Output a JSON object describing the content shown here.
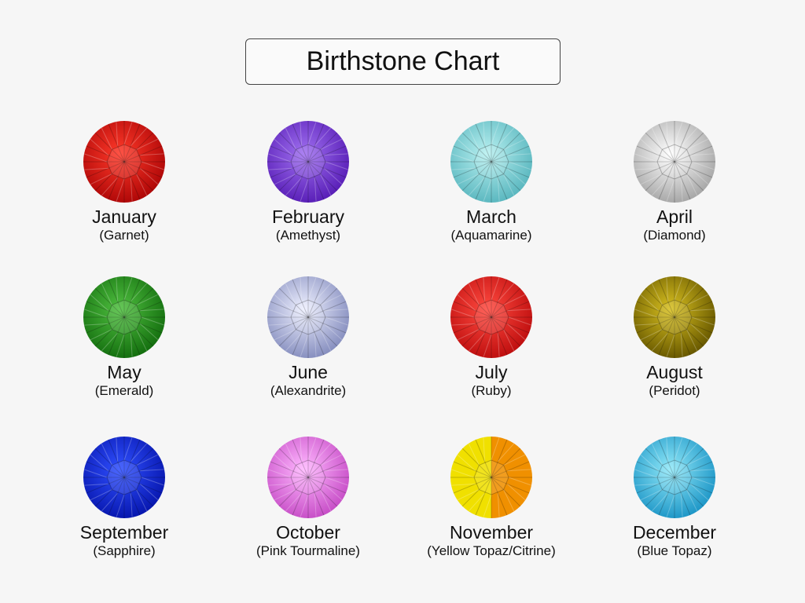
{
  "title": "Birthstone Chart",
  "stones": [
    {
      "month": "January",
      "stone": "(Garnet)",
      "colors": [
        "#ff3a2a",
        "#b00808"
      ]
    },
    {
      "month": "February",
      "stone": "(Amethyst)",
      "colors": [
        "#a070f0",
        "#5a20b8"
      ]
    },
    {
      "month": "March",
      "stone": "(Aquamarine)",
      "colors": [
        "#b8f0f0",
        "#5cb8c0"
      ]
    },
    {
      "month": "April",
      "stone": "(Diamond)",
      "colors": [
        "#ffffff",
        "#a8a8a8"
      ]
    },
    {
      "month": "May",
      "stone": "(Emerald)",
      "colors": [
        "#50c040",
        "#157010"
      ]
    },
    {
      "month": "June",
      "stone": "(Alexandrite)",
      "colors": [
        "#eef0ff",
        "#8890c0"
      ]
    },
    {
      "month": "July",
      "stone": "(Ruby)",
      "colors": [
        "#ff4a40",
        "#c01010"
      ]
    },
    {
      "month": "August",
      "stone": "(Peridot)",
      "colors": [
        "#d8c020",
        "#6a5a00"
      ]
    },
    {
      "month": "September",
      "stone": "(Sapphire)",
      "colors": [
        "#3050ff",
        "#0818b0"
      ]
    },
    {
      "month": "October",
      "stone": "(Pink Tourmaline)",
      "colors": [
        "#ffb8ff",
        "#c850c8"
      ]
    },
    {
      "month": "November",
      "stone": "(Yellow Topaz/Citrine)",
      "colors": [
        "#f0e000",
        "#f09000"
      ]
    },
    {
      "month": "December",
      "stone": "(Blue Topaz)",
      "colors": [
        "#90e8f8",
        "#2098c8"
      ]
    }
  ]
}
